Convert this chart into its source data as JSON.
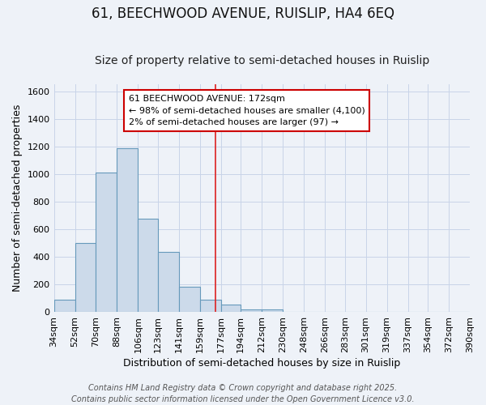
{
  "title_line1": "61, BEECHWOOD AVENUE, RUISLIP, HA4 6EQ",
  "title_line2": "Size of property relative to semi-detached houses in Ruislip",
  "xlabel": "Distribution of semi-detached houses by size in Ruislip",
  "ylabel": "Number of semi-detached properties",
  "footer_line1": "Contains HM Land Registry data © Crown copyright and database right 2025.",
  "footer_line2": "Contains public sector information licensed under the Open Government Licence v3.0.",
  "annotation_line1": "61 BEECHWOOD AVENUE: 172sqm",
  "annotation_line2": "← 98% of semi-detached houses are smaller (4,100)",
  "annotation_line3": "2% of semi-detached houses are larger (97) →",
  "bin_edges": [
    34,
    52,
    70,
    88,
    106,
    123,
    141,
    159,
    177,
    194,
    212,
    230,
    248,
    266,
    283,
    301,
    319,
    337,
    354,
    372,
    390
  ],
  "bin_labels": [
    "34sqm",
    "52sqm",
    "70sqm",
    "88sqm",
    "106sqm",
    "123sqm",
    "141sqm",
    "159sqm",
    "177sqm",
    "194sqm",
    "212sqm",
    "230sqm",
    "248sqm",
    "266sqm",
    "283sqm",
    "301sqm",
    "319sqm",
    "337sqm",
    "354sqm",
    "372sqm",
    "390sqm"
  ],
  "counts": [
    88,
    498,
    1010,
    1185,
    675,
    435,
    180,
    90,
    55,
    20,
    20,
    0,
    0,
    0,
    0,
    0,
    0,
    0,
    0,
    0
  ],
  "bar_color": "#ccdaea",
  "bar_edge_color": "#6699bb",
  "vline_color": "#dd2222",
  "vline_x": 172,
  "annotation_box_edge_color": "#cc0000",
  "annotation_box_face_color": "#ffffff",
  "ylim": [
    0,
    1650
  ],
  "yticks": [
    0,
    200,
    400,
    600,
    800,
    1000,
    1200,
    1400,
    1600
  ],
  "grid_color": "#c8d4e8",
  "background_color": "#eef2f8",
  "title_fontsize": 12,
  "subtitle_fontsize": 10,
  "axis_label_fontsize": 9,
  "tick_fontsize": 8,
  "footer_fontsize": 7
}
